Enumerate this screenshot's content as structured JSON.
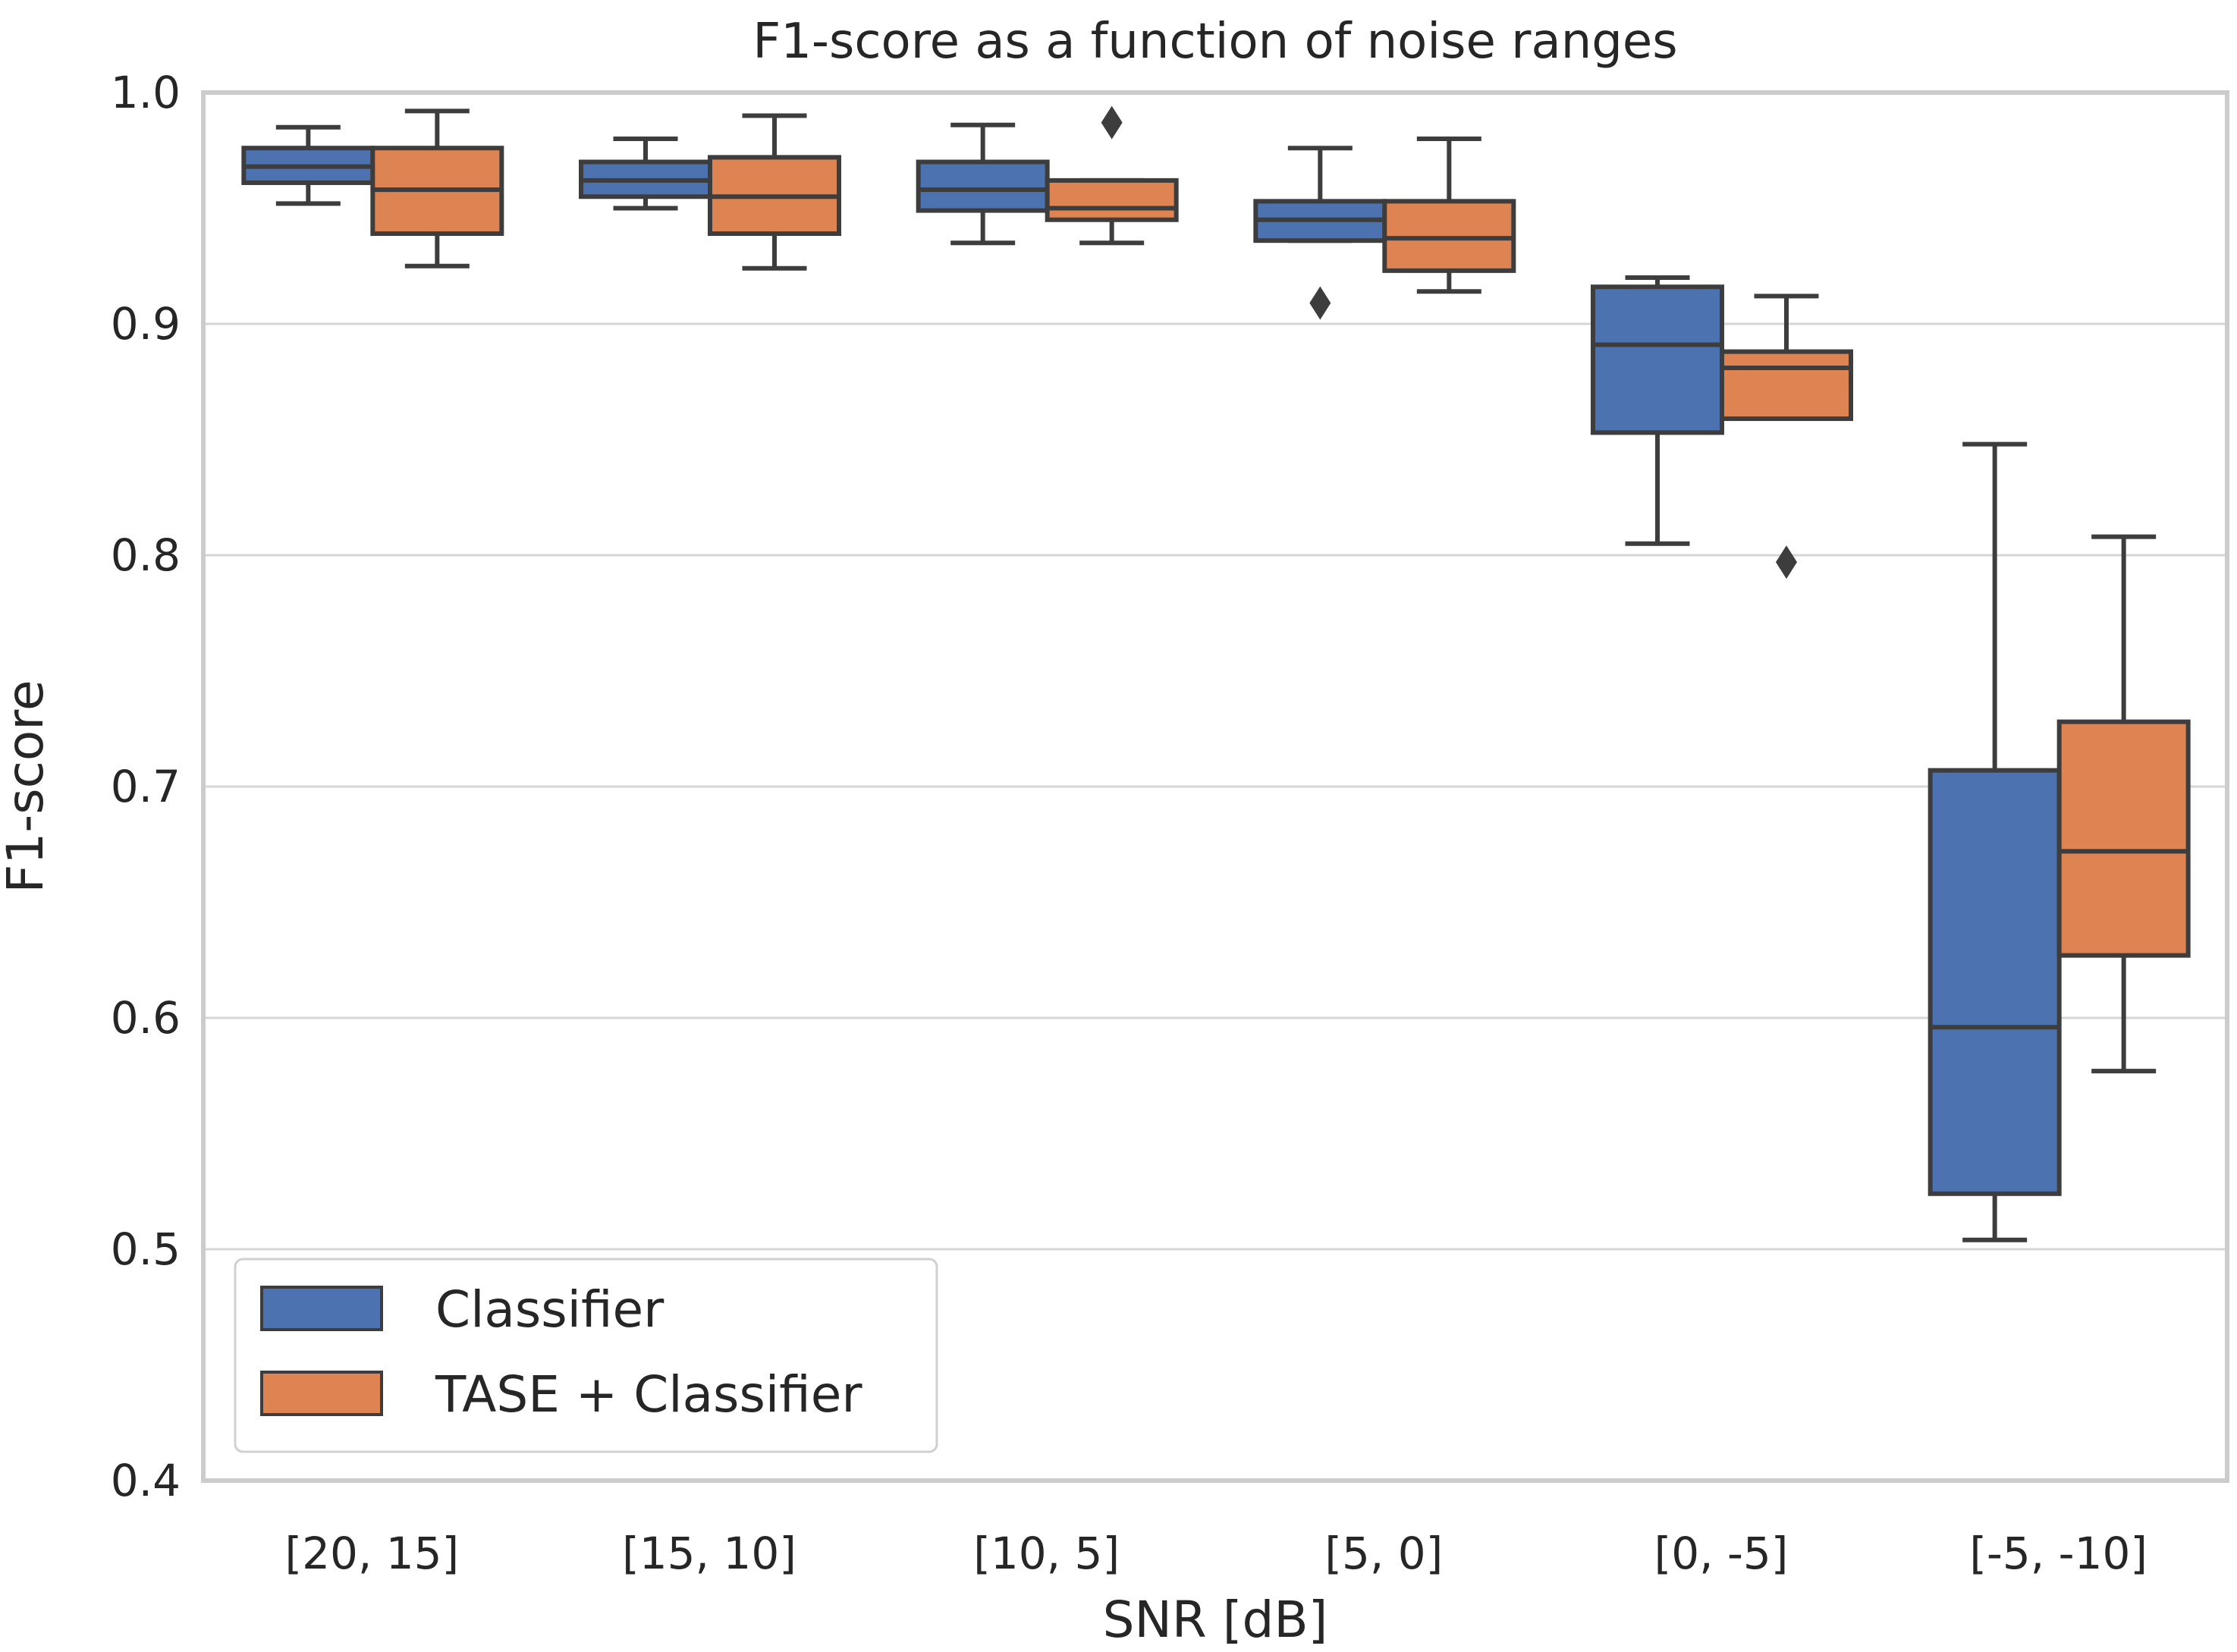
{
  "chart_data": {
    "type": "box",
    "title": "F1-score as a function of noise ranges",
    "xlabel": "SNR [dB]",
    "ylabel": "F1-score",
    "ylim": [
      0.4,
      1.0
    ],
    "yticks": [
      0.4,
      0.5,
      0.6,
      0.7,
      0.8,
      0.9,
      1.0
    ],
    "ytick_labels": [
      "0.4",
      "0.5",
      "0.6",
      "0.7",
      "0.8",
      "0.9",
      "1.0"
    ],
    "grid": "horizontal",
    "legend_position": "bottom-left",
    "categories": [
      "[20, 15]",
      "[15, 10]",
      "[10, 5]",
      "[5, 0]",
      "[0, -5]",
      "[-5, -10]"
    ],
    "series": [
      {
        "name": "Classifier",
        "color": "#4c72b0",
        "boxes": [
          {
            "whisker_low": 0.952,
            "q1": 0.961,
            "median": 0.968,
            "q3": 0.976,
            "whisker_high": 0.985,
            "outliers": []
          },
          {
            "whisker_low": 0.95,
            "q1": 0.955,
            "median": 0.962,
            "q3": 0.97,
            "whisker_high": 0.98,
            "outliers": []
          },
          {
            "whisker_low": 0.935,
            "q1": 0.949,
            "median": 0.958,
            "q3": 0.97,
            "whisker_high": 0.986,
            "outliers": []
          },
          {
            "whisker_low": 0.936,
            "q1": 0.936,
            "median": 0.945,
            "q3": 0.953,
            "whisker_high": 0.976,
            "outliers": [
              0.909
            ]
          },
          {
            "whisker_low": 0.805,
            "q1": 0.853,
            "median": 0.891,
            "q3": 0.916,
            "whisker_high": 0.92,
            "outliers": []
          },
          {
            "whisker_low": 0.504,
            "q1": 0.524,
            "median": 0.596,
            "q3": 0.707,
            "whisker_high": 0.848,
            "outliers": []
          }
        ]
      },
      {
        "name": "TASE + Classifier",
        "color": "#dd8452",
        "boxes": [
          {
            "whisker_low": 0.925,
            "q1": 0.939,
            "median": 0.958,
            "q3": 0.976,
            "whisker_high": 0.992,
            "outliers": []
          },
          {
            "whisker_low": 0.924,
            "q1": 0.939,
            "median": 0.955,
            "q3": 0.972,
            "whisker_high": 0.99,
            "outliers": []
          },
          {
            "whisker_low": 0.935,
            "q1": 0.945,
            "median": 0.95,
            "q3": 0.962,
            "whisker_high": 0.962,
            "outliers": [
              0.987
            ]
          },
          {
            "whisker_low": 0.914,
            "q1": 0.923,
            "median": 0.937,
            "q3": 0.953,
            "whisker_high": 0.98,
            "outliers": []
          },
          {
            "whisker_low": 0.859,
            "q1": 0.859,
            "median": 0.881,
            "q3": 0.888,
            "whisker_high": 0.912,
            "outliers": [
              0.797
            ]
          },
          {
            "whisker_low": 0.577,
            "q1": 0.627,
            "median": 0.672,
            "q3": 0.728,
            "whisker_high": 0.808,
            "outliers": []
          }
        ]
      }
    ]
  }
}
